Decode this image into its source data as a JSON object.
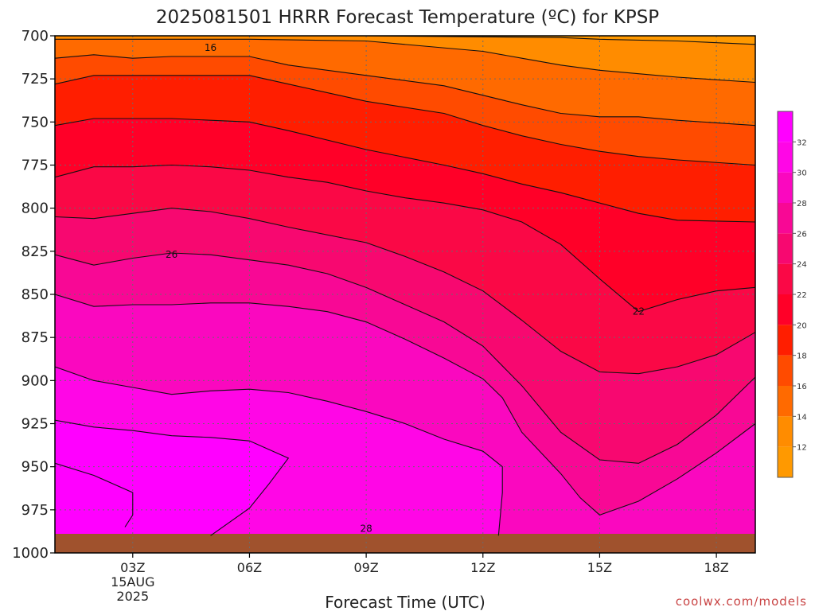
{
  "chart_data": {
    "type": "contour",
    "title": "2025081501 HRRR Forecast Temperature (ºC) for KPSP",
    "xlabel": "Forecast Time (UTC)",
    "ylabel": "",
    "credit": "coolwx.com/models",
    "x_range_hours": [
      1,
      19
    ],
    "y_range_hpa": [
      700,
      1000
    ],
    "x_ticks": [
      {
        "hour": 3,
        "label": "03Z",
        "sub1": "15AUG",
        "sub2": "2025"
      },
      {
        "hour": 6,
        "label": "06Z"
      },
      {
        "hour": 9,
        "label": "09Z"
      },
      {
        "hour": 12,
        "label": "12Z"
      },
      {
        "hour": 15,
        "label": "15Z"
      },
      {
        "hour": 18,
        "label": "18Z"
      }
    ],
    "y_ticks": [
      "700",
      "725",
      "750",
      "775",
      "800",
      "825",
      "850",
      "875",
      "900",
      "925",
      "950",
      "975",
      "1000"
    ],
    "colorbar": {
      "ticks": [
        "12",
        "14",
        "16",
        "18",
        "20",
        "22",
        "24",
        "26",
        "28",
        "30",
        "32"
      ],
      "colors": [
        "#ff8c00",
        "#ff6a00",
        "#ff4b00",
        "#ff1e00",
        "#ff0028",
        "#fa0846",
        "#f70870",
        "#f80895",
        "#fa08bf",
        "#ff06e6",
        "#ff00ff"
      ]
    },
    "contour_labels": [
      {
        "value": "16",
        "hour": 5.0,
        "p": 707
      },
      {
        "value": "26",
        "hour": 4.0,
        "p": 827
      },
      {
        "value": "22",
        "hour": 16.0,
        "p": 860
      },
      {
        "value": "28",
        "hour": 9.0,
        "p": 986
      }
    ],
    "isotherms": [
      {
        "value": 12,
        "pts": [
          [
            9,
            700
          ],
          [
            14,
            701
          ],
          [
            15,
            702
          ],
          [
            17,
            703
          ],
          [
            19,
            705
          ]
        ]
      },
      {
        "value": 14,
        "pts": [
          [
            1,
            702
          ],
          [
            3,
            702
          ],
          [
            6,
            702
          ],
          [
            9,
            703
          ],
          [
            12,
            709
          ],
          [
            13,
            713
          ],
          [
            14,
            717
          ],
          [
            15,
            720
          ],
          [
            16,
            722
          ],
          [
            17,
            724
          ],
          [
            19,
            727
          ]
        ]
      },
      {
        "value": 16,
        "pts": [
          [
            1,
            713
          ],
          [
            2,
            711
          ],
          [
            3,
            713
          ],
          [
            4,
            712
          ],
          [
            5,
            712
          ],
          [
            6,
            712
          ],
          [
            7,
            717
          ],
          [
            9,
            723
          ],
          [
            11,
            729
          ],
          [
            13,
            740
          ],
          [
            14,
            745
          ],
          [
            15,
            747
          ],
          [
            16,
            747
          ],
          [
            17,
            749
          ],
          [
            19,
            752
          ]
        ]
      },
      {
        "value": 18,
        "pts": [
          [
            1,
            728
          ],
          [
            2,
            723
          ],
          [
            3,
            723
          ],
          [
            4,
            723
          ],
          [
            5,
            723
          ],
          [
            6,
            723
          ],
          [
            7,
            728
          ],
          [
            9,
            738
          ],
          [
            11,
            745
          ],
          [
            12,
            752
          ],
          [
            13,
            758
          ],
          [
            14,
            763
          ],
          [
            15,
            767
          ],
          [
            16,
            770
          ],
          [
            17,
            772
          ],
          [
            19,
            775
          ]
        ]
      },
      {
        "value": 20,
        "pts": [
          [
            1,
            752
          ],
          [
            2,
            748
          ],
          [
            3,
            748
          ],
          [
            4,
            748
          ],
          [
            5,
            749
          ],
          [
            6,
            750
          ],
          [
            7,
            755
          ],
          [
            9,
            766
          ],
          [
            11,
            775
          ],
          [
            12,
            780
          ],
          [
            13,
            786
          ],
          [
            14,
            791
          ],
          [
            15,
            797
          ],
          [
            16,
            803
          ],
          [
            17,
            807
          ],
          [
            19,
            808
          ]
        ]
      },
      {
        "value": 22,
        "pts": [
          [
            1,
            782
          ],
          [
            2,
            776
          ],
          [
            3,
            776
          ],
          [
            4,
            775
          ],
          [
            5,
            776
          ],
          [
            6,
            778
          ],
          [
            7,
            782
          ],
          [
            8,
            785
          ],
          [
            9,
            790
          ],
          [
            10,
            794
          ],
          [
            11,
            797
          ],
          [
            12,
            801
          ],
          [
            13,
            808
          ],
          [
            14,
            821
          ],
          [
            15,
            841
          ],
          [
            16,
            860
          ],
          [
            17,
            853
          ],
          [
            18,
            848
          ],
          [
            19,
            846
          ]
        ]
      },
      {
        "value": 24,
        "pts": [
          [
            1,
            805
          ],
          [
            2,
            806
          ],
          [
            3,
            803
          ],
          [
            4,
            800
          ],
          [
            5,
            802
          ],
          [
            6,
            806
          ],
          [
            7,
            811
          ],
          [
            9,
            820
          ],
          [
            10,
            828
          ],
          [
            11,
            837
          ],
          [
            12,
            848
          ],
          [
            13,
            865
          ],
          [
            14,
            883
          ],
          [
            15,
            895
          ],
          [
            16,
            896
          ],
          [
            17,
            892
          ],
          [
            18,
            885
          ],
          [
            19,
            872
          ]
        ]
      },
      {
        "value": 26,
        "pts": [
          [
            1,
            827
          ],
          [
            2,
            833
          ],
          [
            3,
            829
          ],
          [
            4,
            826
          ],
          [
            5,
            827
          ],
          [
            6,
            830
          ],
          [
            7,
            833
          ],
          [
            8,
            838
          ],
          [
            9,
            846
          ],
          [
            10,
            856
          ],
          [
            11,
            866
          ],
          [
            12,
            880
          ],
          [
            13,
            903
          ],
          [
            14,
            930
          ],
          [
            15,
            946
          ],
          [
            16,
            948
          ],
          [
            17,
            937
          ],
          [
            18,
            920
          ],
          [
            19,
            898
          ]
        ]
      },
      {
        "value": 28,
        "pts": [
          [
            1,
            850
          ],
          [
            2,
            857
          ],
          [
            3,
            856
          ],
          [
            4,
            856
          ],
          [
            5,
            855
          ],
          [
            6,
            855
          ],
          [
            7,
            857
          ],
          [
            8,
            860
          ],
          [
            9,
            866
          ],
          [
            10,
            876
          ],
          [
            11,
            887
          ],
          [
            12,
            899
          ],
          [
            12.5,
            910
          ],
          [
            13,
            930
          ],
          [
            14,
            954
          ],
          [
            14.5,
            968
          ],
          [
            15,
            978
          ],
          [
            16,
            970
          ],
          [
            17,
            957
          ],
          [
            18,
            942
          ],
          [
            19,
            925
          ]
        ]
      },
      {
        "value": 30,
        "pts": [
          [
            1,
            892
          ],
          [
            2,
            900
          ],
          [
            3,
            904
          ],
          [
            4,
            908
          ],
          [
            5,
            906
          ],
          [
            6,
            905
          ],
          [
            7,
            907
          ],
          [
            8,
            912
          ],
          [
            9,
            918
          ],
          [
            10,
            925
          ],
          [
            11,
            934
          ],
          [
            12,
            941
          ],
          [
            12.5,
            950
          ],
          [
            12.5,
            965
          ],
          [
            12.4,
            990
          ]
        ]
      },
      {
        "value": 32,
        "pts": [
          [
            1,
            923
          ],
          [
            2,
            927
          ],
          [
            3,
            929
          ],
          [
            4,
            932
          ],
          [
            5,
            933
          ],
          [
            6,
            935
          ],
          [
            7,
            945
          ],
          [
            6.5,
            960
          ],
          [
            6,
            974
          ],
          [
            5,
            990
          ]
        ]
      },
      {
        "value": 33,
        "pts": [
          [
            1,
            948
          ],
          [
            2,
            955
          ],
          [
            3,
            965
          ],
          [
            3,
            978
          ],
          [
            2.8,
            985
          ]
        ]
      }
    ]
  }
}
